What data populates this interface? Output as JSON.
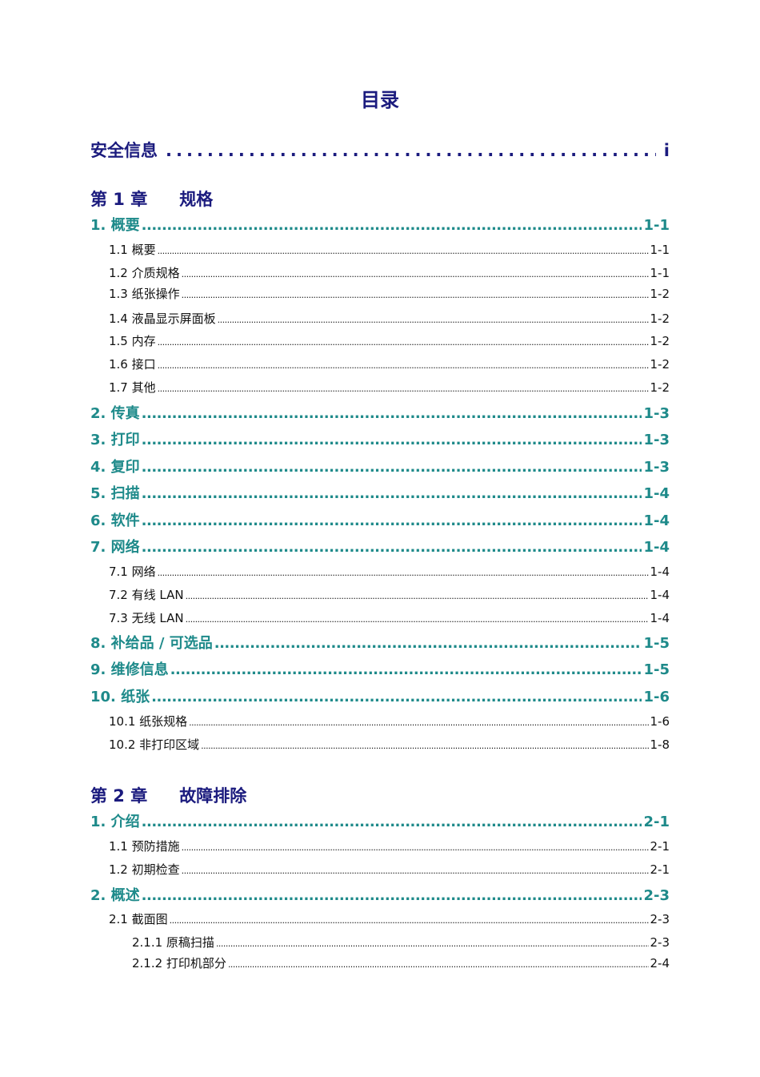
{
  "title": "目录",
  "safety": {
    "label": "安全信息",
    "page": "i"
  },
  "chapters": [
    {
      "number": "第 1 章",
      "name": "规格",
      "entries": [
        {
          "level": "h",
          "label": "1. 概要",
          "page": "1-1"
        },
        {
          "level": "s",
          "label": "1.1 概要",
          "page": "1-1"
        },
        {
          "level": "s",
          "label": "1.2 介质规格 ",
          "page": "1-1"
        },
        {
          "level": "s",
          "label": "1.3 纸张操作 ",
          "page": "1-2"
        },
        {
          "level": "s",
          "label": "1.4 液晶显示屏面板",
          "page": "1-2"
        },
        {
          "level": "s",
          "label": "1.5 内存",
          "page": "1-2"
        },
        {
          "level": "s",
          "label": "1.6 接口",
          "page": "1-2"
        },
        {
          "level": "s",
          "label": "1.7 其他",
          "page": "1-2"
        },
        {
          "level": "h",
          "label": "2. 传真",
          "page": "1-3"
        },
        {
          "level": "h",
          "label": "3. 打印",
          "page": "1-3"
        },
        {
          "level": "h",
          "label": "4. 复印",
          "page": "1-3"
        },
        {
          "level": "h",
          "label": "5. 扫描",
          "page": "1-4"
        },
        {
          "level": "h",
          "label": "6. 软件",
          "page": "1-4"
        },
        {
          "level": "h",
          "label": "7. 网络",
          "page": "1-4"
        },
        {
          "level": "s",
          "label": "7.1 网络",
          "page": "1-4"
        },
        {
          "level": "s",
          "label": "7.2 有线 LAN",
          "page": "1-4"
        },
        {
          "level": "s",
          "label": "7.3 无线 LAN",
          "page": "1-4"
        },
        {
          "level": "h",
          "label": "8. 补给品 / 可选品 ",
          "page": "1-5"
        },
        {
          "level": "h",
          "label": "9. 维修信息",
          "page": "1-5"
        },
        {
          "level": "h",
          "label": "10. 纸张",
          "page": "1-6"
        },
        {
          "level": "s",
          "label": "10.1 纸张规格 ",
          "page": "1-6"
        },
        {
          "level": "s",
          "label": "10.2 非打印区域",
          "page": "1-8"
        }
      ]
    },
    {
      "number": "第 2 章",
      "name": "故障排除",
      "entries": [
        {
          "level": "h",
          "label": "1. 介绍",
          "page": "2-1"
        },
        {
          "level": "s",
          "label": "1.1 预防措施 ",
          "page": "2-1"
        },
        {
          "level": "s",
          "label": "1.2 初期检查 ",
          "page": "2-1"
        },
        {
          "level": "h",
          "label": "2. 概述",
          "page": "2-3"
        },
        {
          "level": "s",
          "label": "2.1 截面图",
          "page": "2-3"
        },
        {
          "level": "ss",
          "label": "2.1.1 原稿扫描 ",
          "page": "2-3"
        },
        {
          "level": "ss",
          "label": "2.1.2 打印机部分",
          "page": "2-4"
        }
      ]
    }
  ],
  "colors": {
    "heading": "#1b1b7e",
    "section": "#1e8a8a",
    "text": "#111111"
  }
}
